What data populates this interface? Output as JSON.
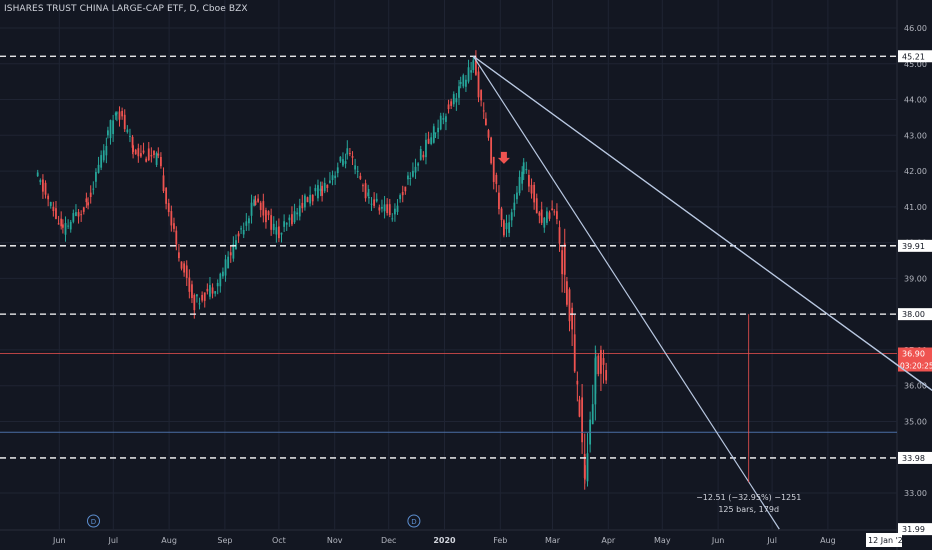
{
  "header": {
    "title": "ISHARES TRUST CHINA LARGE-CAP ETF, D, Cboe BZX"
  },
  "colors": {
    "background": "#131722",
    "grid": "#1f2433",
    "text": "#b2b5be",
    "up": "#26a69a",
    "down": "#ef5350",
    "trendline": "#b8c7e0",
    "price_line": "#ef5350",
    "blue_line": "#4a6fa5"
  },
  "chart_data": {
    "type": "candlestick",
    "title": "ISHARES TRUST CHINA LARGE-CAP ETF, D, Cboe BZX",
    "ylim": [
      31.99,
      46.0
    ],
    "y_ticks": [
      33,
      35,
      36,
      37,
      38,
      39,
      40,
      41,
      42,
      43,
      44,
      45,
      46
    ],
    "x_ticks": [
      "Jun",
      "Jul",
      "Aug",
      "Sep",
      "Oct",
      "Nov",
      "Dec",
      "2020",
      "Feb",
      "Mar",
      "Apr",
      "May",
      "Jun",
      "Jul",
      "Aug"
    ],
    "price_labels": [
      {
        "value": 45.21,
        "label": "45.21",
        "style": "dashed"
      },
      {
        "value": 39.91,
        "label": "39.91",
        "style": "dashed"
      },
      {
        "value": 38.0,
        "label": "38.00",
        "style": "dashed"
      },
      {
        "value": 33.98,
        "label": "33.98",
        "style": "dashed"
      },
      {
        "value": 31.99,
        "label": "31.99",
        "style": "dashed"
      }
    ],
    "current_price": {
      "value": 36.9,
      "label": "36.90",
      "countdown": "03:20:25"
    },
    "horizontal_line": 34.7,
    "date_label": "12 Jan '21",
    "measure": {
      "text": "−12.51 (−32.95%) −1251",
      "text2": "125 bars, 179d"
    },
    "trendlines": [
      {
        "from": {
          "date": "2020-01-17",
          "price": 45.21
        },
        "to": {
          "date": "2021-01-12",
          "price": 31.99
        }
      },
      {
        "from": {
          "date": "2020-01-17",
          "price": 45.21
        },
        "to": {
          "date": "2021-01-10",
          "price": 32.05
        }
      },
      {
        "from": {
          "date": "2020-01-17",
          "price": 45.21
        },
        "to": {
          "date": "2020-07-05",
          "price": 31.99
        }
      }
    ],
    "markers": [
      {
        "type": "dividend",
        "label": "D",
        "date": "2019-06-20"
      },
      {
        "type": "dividend",
        "label": "D",
        "date": "2019-12-15"
      }
    ],
    "arrow": {
      "date": "2020-02-03",
      "price": 42.2
    },
    "path_points": [
      {
        "date": "2019-05-20",
        "price": 41.8
      },
      {
        "date": "2019-06-03",
        "price": 40.3
      },
      {
        "date": "2019-06-17",
        "price": 41.2
      },
      {
        "date": "2019-06-28",
        "price": 43.0
      },
      {
        "date": "2019-07-03",
        "price": 43.8
      },
      {
        "date": "2019-07-12",
        "price": 42.6
      },
      {
        "date": "2019-07-26",
        "price": 42.3
      },
      {
        "date": "2019-08-05",
        "price": 39.9
      },
      {
        "date": "2019-08-15",
        "price": 38.3
      },
      {
        "date": "2019-08-28",
        "price": 38.9
      },
      {
        "date": "2019-09-10",
        "price": 40.4
      },
      {
        "date": "2019-09-18",
        "price": 41.2
      },
      {
        "date": "2019-10-01",
        "price": 40.2
      },
      {
        "date": "2019-10-14",
        "price": 41.1
      },
      {
        "date": "2019-10-25",
        "price": 41.5
      },
      {
        "date": "2019-11-08",
        "price": 42.5
      },
      {
        "date": "2019-11-20",
        "price": 41.2
      },
      {
        "date": "2019-12-03",
        "price": 40.8
      },
      {
        "date": "2019-12-13",
        "price": 41.9
      },
      {
        "date": "2019-12-27",
        "price": 43.2
      },
      {
        "date": "2020-01-10",
        "price": 44.4
      },
      {
        "date": "2020-01-17",
        "price": 45.0
      },
      {
        "date": "2020-01-24",
        "price": 43.2
      },
      {
        "date": "2020-02-03",
        "price": 40.2
      },
      {
        "date": "2020-02-14",
        "price": 42.1
      },
      {
        "date": "2020-02-24",
        "price": 40.6
      },
      {
        "date": "2020-03-02",
        "price": 41.0
      },
      {
        "date": "2020-03-09",
        "price": 38.6
      },
      {
        "date": "2020-03-16",
        "price": 35.4
      },
      {
        "date": "2020-03-19",
        "price": 33.4
      },
      {
        "date": "2020-03-25",
        "price": 36.6
      },
      {
        "date": "2020-04-01",
        "price": 36.6
      }
    ]
  },
  "axis": {
    "measure_bars": 125
  }
}
